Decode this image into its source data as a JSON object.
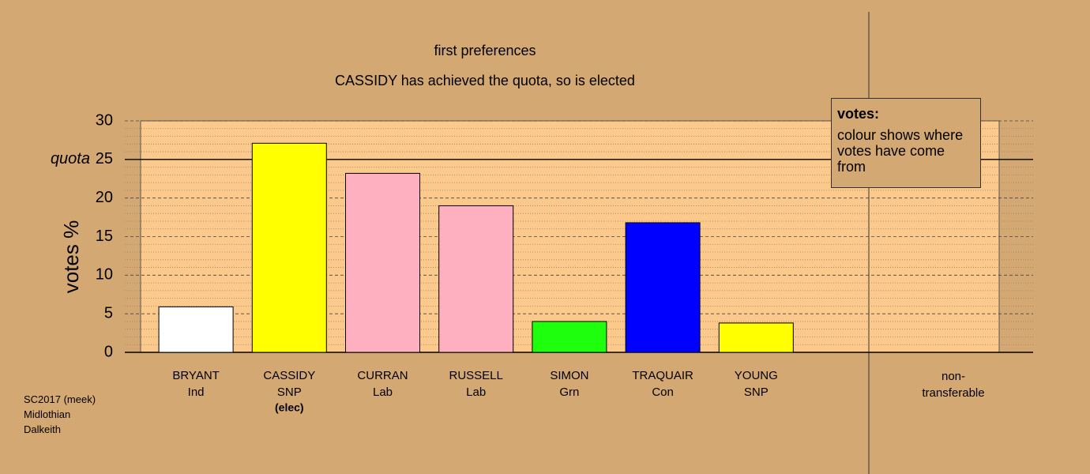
{
  "chart_data": {
    "type": "bar",
    "title": "first preferences",
    "subtitle": "CASSIDY has achieved the quota, so is elected",
    "y_label": "votes %",
    "categories": [
      "BRYANT",
      "CASSIDY",
      "CURRAN",
      "RUSSELL",
      "SIMON",
      "TRAQUAIR",
      "YOUNG"
    ],
    "parties": [
      "Ind",
      "SNP",
      "Lab",
      "Lab",
      "Grn",
      "Con",
      "SNP"
    ],
    "values": [
      5.9,
      27.1,
      23.2,
      19.0,
      4.0,
      16.8,
      3.8
    ],
    "colors": [
      "#ffffff",
      "#ffff00",
      "#ffb0c0",
      "#ffb0c0",
      "#1eff0e",
      "#0000ff",
      "#ffff00"
    ],
    "elected_note": {
      "index": 1,
      "label": "(elec)"
    },
    "nontransferable_label": "non-transferable",
    "quota": {
      "value": 25,
      "label": "quota"
    },
    "ylim": [
      0,
      30
    ],
    "yticks": [
      0,
      5,
      10,
      15,
      20,
      25,
      30
    ],
    "minor_yticks": [
      1,
      2,
      3,
      4,
      6,
      7,
      8,
      9,
      11,
      12,
      13,
      14,
      16,
      17,
      18,
      19,
      21,
      22,
      23,
      24,
      26,
      27,
      28,
      29
    ],
    "grid": true,
    "legend": {
      "title": "votes:",
      "text": "colour shows where votes have come from"
    },
    "footnote": [
      "SC2017 (meek)",
      "Midlothian",
      "Dalkeith"
    ]
  }
}
